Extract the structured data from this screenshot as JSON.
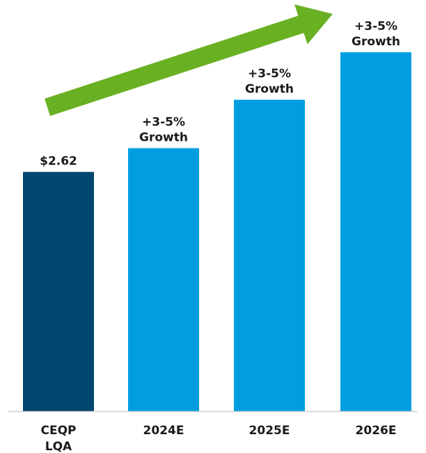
{
  "chart_data": {
    "type": "bar",
    "title": "",
    "xlabel": "",
    "ylabel": "",
    "categories": [
      [
        "CEQP",
        "LQA"
      ],
      [
        "2024E"
      ],
      [
        "2025E"
      ],
      [
        "2026E"
      ]
    ],
    "values": [
      2.62,
      2.88,
      3.41,
      3.93
    ],
    "data_labels": [
      [
        "$2.62"
      ],
      [
        "+3-5%",
        "Growth"
      ],
      [
        "+3-5%",
        "Growth"
      ],
      [
        "+3-5%",
        "Growth"
      ]
    ],
    "bar_colors": [
      "#00466e",
      "#009ee0",
      "#009ee0",
      "#009ee0"
    ],
    "arrow_color": "#6ab023",
    "axis_color": "#d0d0d0",
    "ylim": [
      0,
      3.93
    ],
    "grid": false,
    "legend": "none"
  }
}
